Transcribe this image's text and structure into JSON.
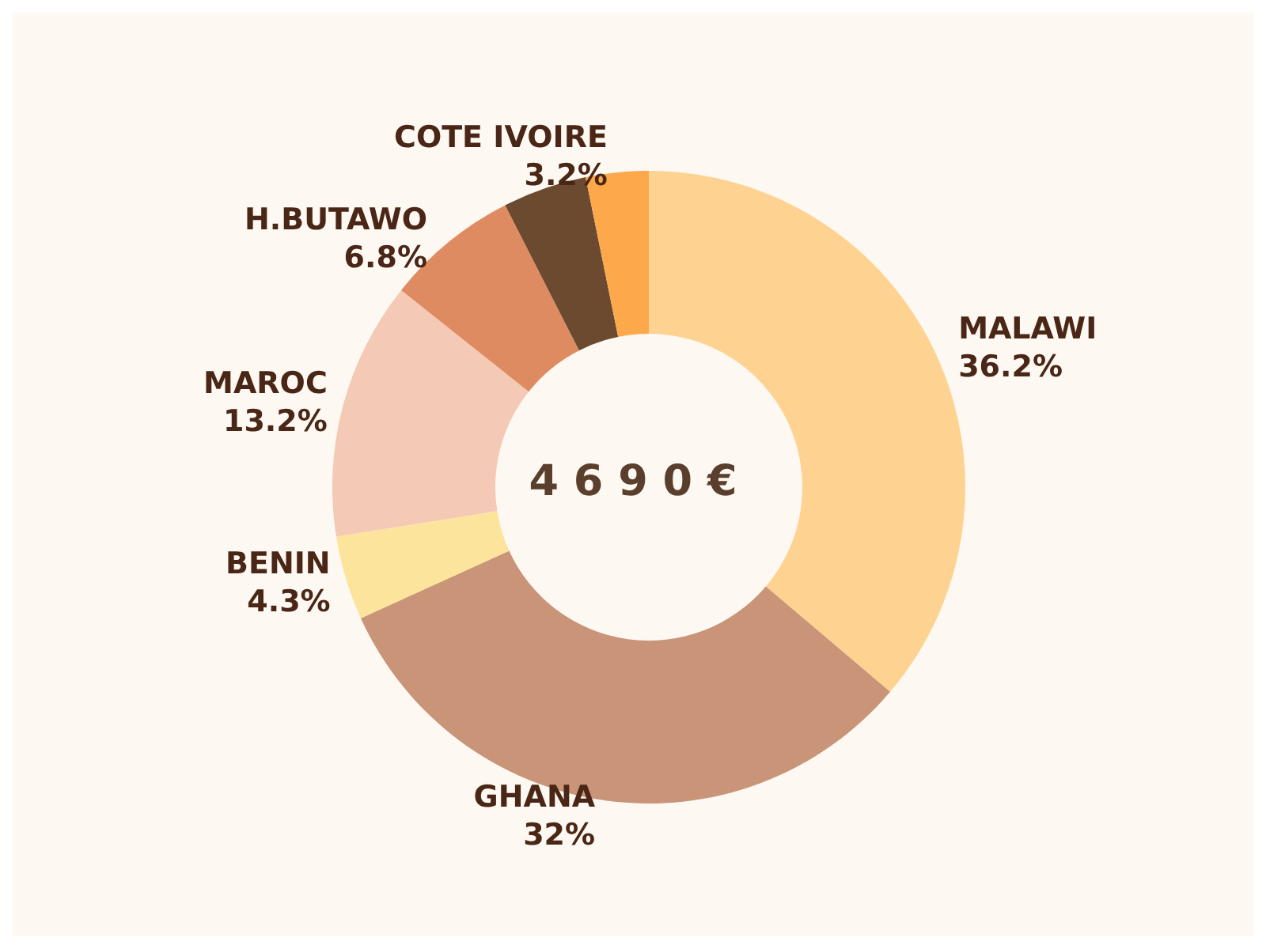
{
  "chart_data": {
    "type": "donut",
    "categories": [
      "MALAWI",
      "GHANA",
      "BENIN",
      "MAROC",
      "H.BUTAWO",
      null,
      "COTE IVOIRE"
    ],
    "values": [
      36.2,
      32,
      4.3,
      13.2,
      6.8,
      4.3,
      3.2
    ],
    "value_labels": [
      "36.2%",
      "32%",
      "4.3%",
      "13.2%",
      "6.8%",
      null,
      "3.2%"
    ],
    "colors": [
      "#fed391",
      "#c99477",
      "#fde49c",
      "#f4c9b5",
      "#df8b62",
      "#6b4a2f",
      "#fda84a"
    ],
    "annotations": [
      "4 6 9 0 €"
    ],
    "legend": false
  }
}
